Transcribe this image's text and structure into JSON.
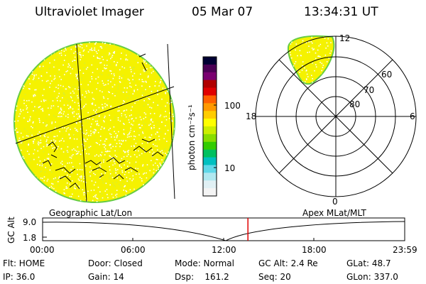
{
  "header": {
    "instrument": "Ultraviolet Imager",
    "date": "05 Mar 07",
    "time": "13:34:31 UT"
  },
  "left_panel": {
    "caption": "Geographic Lat/Lon"
  },
  "colorbar": {
    "unit_label": "photon cm⁻²s⁻¹",
    "tick_labels": [
      "100",
      "10"
    ],
    "colors": [
      "#000033",
      "#4b0055",
      "#7a0070",
      "#b00000",
      "#e00000",
      "#ff6000",
      "#ff9900",
      "#ffcc00",
      "#ffff00",
      "#ccee00",
      "#88dd00",
      "#33cc00",
      "#00c060",
      "#00c0c0",
      "#60d8e8",
      "#b0e8f0",
      "#e0f0f4",
      "#f4f4f4"
    ]
  },
  "right_panel": {
    "caption": "Apex MLat/MLT",
    "mlt_labels": {
      "top": "12",
      "left": "18",
      "right": "6",
      "bottom": "0"
    },
    "lat_labels": [
      "60",
      "70",
      "80"
    ]
  },
  "timeline": {
    "y_axis_label": "GC Alt",
    "y_ticks": [
      "9.0",
      "1.8"
    ],
    "x_ticks": [
      "00:00",
      "06:00",
      "12:00",
      "18:00",
      "23:59"
    ],
    "current_time_fraction": 0.567
  },
  "info": {
    "row1": {
      "flt": "Flt: HOME",
      "door": "Door: Closed",
      "mode": "Mode: Normal",
      "gc_alt": "GC Alt: 2.4 Re",
      "glat": "GLat:   48.7"
    },
    "row2": {
      "ip": "IP: 36.0",
      "gain": "Gain: 14",
      "dsp": "Dsp:    161.2",
      "seq": "Seq: 20",
      "glon": "GLon: 337.0"
    }
  }
}
